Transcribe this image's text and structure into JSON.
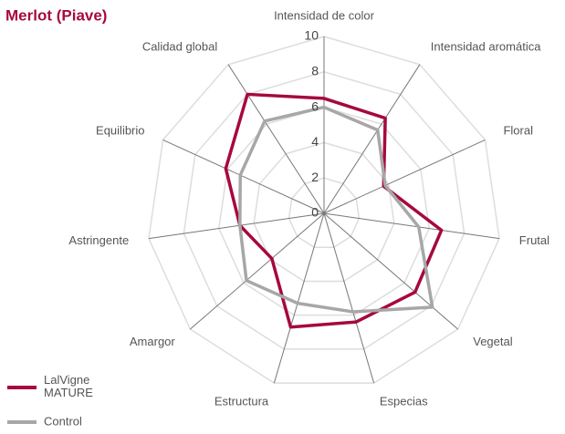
{
  "chart_data": {
    "type": "radar",
    "title": "Merlot (Piave)",
    "categories": [
      "Intensidad de color",
      "Intensidad aromática",
      "Floral",
      "Frutal",
      "Vegetal",
      "Especias",
      "Estructura",
      "Amargor",
      "Astringente",
      "Equilibrio",
      "Calidad global"
    ],
    "series": [
      {
        "name": "LalVigne MATURE",
        "color": "#a6093d",
        "values": [
          6.5,
          6.4,
          3.7,
          6.7,
          6.8,
          6.4,
          6.7,
          3.9,
          4.8,
          6.1,
          8.0
        ]
      },
      {
        "name": "Control",
        "color": "#a7a7a7",
        "values": [
          6.0,
          5.6,
          3.8,
          5.4,
          8.1,
          5.8,
          5.3,
          5.8,
          4.8,
          5.2,
          6.2
        ]
      }
    ],
    "rlim": [
      0,
      10
    ],
    "rticks": [
      0,
      2,
      4,
      6,
      8,
      10
    ],
    "grid": true,
    "legend": "bottom-left"
  }
}
